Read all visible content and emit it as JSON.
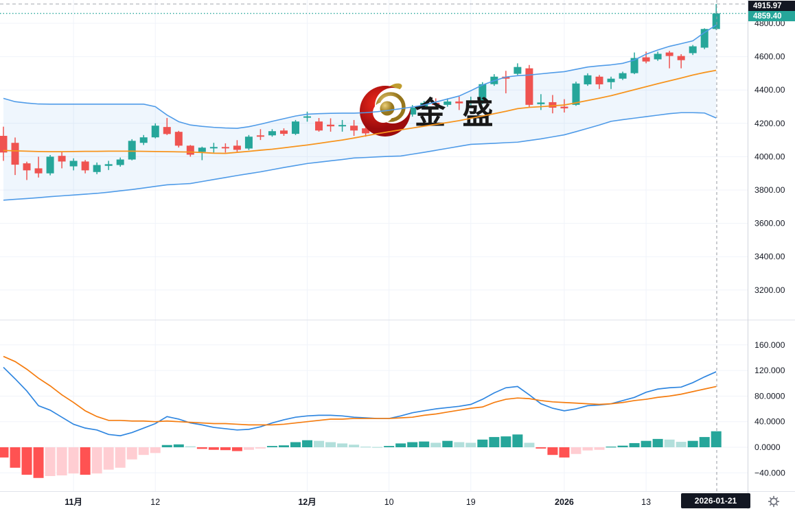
{
  "watermark": {
    "text": "金 盛"
  },
  "price_axis": {
    "high_badge": {
      "text": "4915.97",
      "value": 4915.97,
      "bg": "#131722"
    },
    "last_badge": {
      "text": "4859.40",
      "value": 4859.4,
      "bg": "#26a69a"
    },
    "labels": [
      "4800.00",
      "4600.00",
      "4400.00",
      "4200.00",
      "4000.00",
      "3800.00",
      "3600.00",
      "3400.00",
      "3200.00"
    ],
    "values": [
      4800,
      4600,
      4400,
      4200,
      4000,
      3800,
      3600,
      3400,
      3200
    ]
  },
  "indicator_axis": {
    "labels": [
      "160.000",
      "120.000",
      "80.0000",
      "40.0000",
      "0.0000",
      "−40.000"
    ],
    "values": [
      160,
      120,
      80,
      40,
      0,
      -40
    ]
  },
  "time_axis": {
    "ticks": [
      {
        "label": "11月",
        "index": 6,
        "bold": true
      },
      {
        "label": "12",
        "index": 13,
        "bold": false
      },
      {
        "label": "12月",
        "index": 26,
        "bold": true
      },
      {
        "label": "10",
        "index": 33,
        "bold": false
      },
      {
        "label": "19",
        "index": 40,
        "bold": false
      },
      {
        "label": "2026",
        "index": 48,
        "bold": true
      },
      {
        "label": "13",
        "index": 55,
        "bold": false
      }
    ],
    "current_badge": "2026-01-21"
  },
  "colors": {
    "up": "#26a69a",
    "down": "#ef5350",
    "boll_band": "#4f9be8",
    "boll_fill": "rgba(79,155,232,0.09)",
    "boll_mid": "#f7941d",
    "macd_fast": "#2f86e0",
    "macd_slow": "#f57c0f",
    "hist_up": "#26a69a",
    "hist_up_fade": "#b2dfdb",
    "hist_down": "#ff5252",
    "hist_down_fade": "#ffcdd2",
    "grid": "#f0f3fa",
    "text": "#131722",
    "separator": "#e0e3eb",
    "axis_border": "#d1d4dc",
    "high_line": "#a3a6af",
    "last_line": "#26a69a",
    "cursor_line": "#9598a1",
    "logo_red": "#c8100f",
    "logo_gold": "#bf9c2e"
  },
  "chart_data": {
    "type": "candlestick",
    "panes": [
      "price + Bollinger Bands",
      "MACD"
    ],
    "x_unit": "trading day",
    "session_high": 4915.97,
    "last_price": 4859.4,
    "current_date": "2026-01-21",
    "price_range": [
      3200,
      4915.97
    ],
    "macd_range": [
      -48,
      160
    ],
    "candles": {
      "open": [
        4125,
        4083,
        3960,
        3930,
        3900,
        4005,
        3942,
        3971,
        3908,
        3945,
        3950,
        3983,
        4083,
        4116,
        4178,
        4149,
        4066,
        4029,
        4050,
        4058,
        4066,
        4049,
        4128,
        4128,
        4157,
        4137,
        4235,
        4211,
        4192,
        4182,
        4186,
        4170,
        4145,
        4198,
        4240,
        4253,
        4294,
        4323,
        4311,
        4331,
        4320,
        4323,
        4435,
        4480,
        4497,
        4530,
        4315,
        4327,
        4300,
        4311,
        4434,
        4480,
        4447,
        4468,
        4501,
        4596,
        4584,
        4625,
        4604,
        4621,
        4654,
        4766
      ],
      "high": [
        4180,
        4115,
        3970,
        4000,
        4010,
        4032,
        3990,
        3980,
        3965,
        3975,
        3995,
        4105,
        4130,
        4200,
        4232,
        4155,
        4070,
        4060,
        4083,
        4080,
        4099,
        4130,
        4165,
        4165,
        4170,
        4220,
        4270,
        4232,
        4230,
        4220,
        4220,
        4200,
        4210,
        4260,
        4260,
        4310,
        4335,
        4350,
        4350,
        4360,
        4360,
        4447,
        4495,
        4515,
        4560,
        4550,
        4375,
        4370,
        4345,
        4450,
        4500,
        4490,
        4480,
        4510,
        4625,
        4630,
        4630,
        4635,
        4615,
        4670,
        4770,
        4915.97
      ],
      "low": [
        3975,
        3890,
        3860,
        3875,
        3888,
        3930,
        3918,
        3900,
        3895,
        3920,
        3940,
        3978,
        4070,
        4110,
        4130,
        4055,
        4000,
        3979,
        4025,
        4025,
        4030,
        4040,
        4100,
        4120,
        4125,
        4130,
        4210,
        4150,
        4150,
        4150,
        4125,
        4120,
        4135,
        4190,
        4200,
        4240,
        4285,
        4290,
        4300,
        4280,
        4300,
        4315,
        4425,
        4380,
        4490,
        4295,
        4280,
        4260,
        4265,
        4305,
        4425,
        4406,
        4406,
        4460,
        4495,
        4560,
        4575,
        4530,
        4530,
        4610,
        4645,
        4760
      ],
      "close": [
        4025,
        3952,
        3918,
        3900,
        4000,
        3971,
        3975,
        3918,
        3950,
        3955,
        3983,
        4095,
        4116,
        4186,
        4136,
        4066,
        4012,
        4054,
        4058,
        4050,
        4041,
        4120,
        4120,
        4153,
        4137,
        4211,
        4242,
        4157,
        4182,
        4190,
        4157,
        4140,
        4198,
        4240,
        4215,
        4294,
        4323,
        4310,
        4331,
        4320,
        4330,
        4435,
        4480,
        4468,
        4538,
        4311,
        4325,
        4294,
        4290,
        4439,
        4488,
        4434,
        4468,
        4501,
        4592,
        4571,
        4617,
        4604,
        4579,
        4662,
        4766,
        4859.4
      ]
    },
    "bollinger": {
      "upper": [
        4350,
        4330,
        4322,
        4316,
        4315,
        4315,
        4315,
        4315,
        4315,
        4315,
        4315,
        4315,
        4315,
        4300,
        4250,
        4210,
        4190,
        4182,
        4176,
        4172,
        4170,
        4180,
        4195,
        4212,
        4228,
        4244,
        4255,
        4258,
        4260,
        4261,
        4261,
        4264,
        4270,
        4278,
        4288,
        4298,
        4310,
        4328,
        4346,
        4364,
        4396,
        4430,
        4456,
        4478,
        4486,
        4490,
        4497,
        4504,
        4510,
        4524,
        4538,
        4545,
        4551,
        4560,
        4580,
        4615,
        4640,
        4662,
        4678,
        4695,
        4745,
        4790
      ],
      "middle": [
        4037,
        4035,
        4033,
        4031,
        4030,
        4030,
        4031,
        4032,
        4032,
        4033,
        4033,
        4033,
        4032,
        4031,
        4030,
        4029,
        4028,
        4025,
        4021,
        4020,
        4026,
        4032,
        4039,
        4045,
        4053,
        4062,
        4070,
        4080,
        4090,
        4100,
        4112,
        4125,
        4138,
        4150,
        4161,
        4172,
        4183,
        4194,
        4205,
        4216,
        4230,
        4244,
        4258,
        4272,
        4288,
        4296,
        4300,
        4305,
        4310,
        4323,
        4337,
        4351,
        4366,
        4384,
        4402,
        4420,
        4438,
        4455,
        4472,
        4490,
        4505,
        4518
      ],
      "lower": [
        3739,
        3744,
        3749,
        3754,
        3760,
        3765,
        3770,
        3775,
        3780,
        3787,
        3795,
        3803,
        3812,
        3822,
        3831,
        3835,
        3839,
        3851,
        3863,
        3875,
        3887,
        3898,
        3909,
        3922,
        3935,
        3947,
        3959,
        3967,
        3975,
        3983,
        3992,
        3995,
        3999,
        4002,
        4004,
        4015,
        4026,
        4038,
        4050,
        4062,
        4074,
        4077,
        4080,
        4084,
        4087,
        4097,
        4107,
        4119,
        4131,
        4150,
        4170,
        4190,
        4212,
        4222,
        4231,
        4240,
        4249,
        4258,
        4264,
        4264,
        4262,
        4232
      ]
    },
    "macd": {
      "histogram": [
        -16,
        -32,
        -43,
        -48,
        -45,
        -44,
        -41,
        -43,
        -41,
        -35,
        -32,
        -19,
        -12,
        -9,
        3.5,
        4.5,
        1.5,
        -2.5,
        -4,
        -4.5,
        -6,
        -4,
        -2,
        2,
        3,
        8,
        11,
        10,
        8,
        6,
        4,
        1,
        0.5,
        2,
        6,
        8,
        9,
        7,
        10,
        8,
        7,
        12,
        16,
        17,
        20,
        7,
        -2,
        -12,
        -16,
        -10.5,
        -5,
        -4,
        1,
        2.5,
        6.5,
        10,
        13,
        12,
        8.5,
        10,
        16,
        25
      ],
      "dif": [
        125,
        107,
        88,
        65,
        58,
        47,
        36,
        30,
        27,
        20,
        18,
        23,
        30,
        37,
        48,
        44,
        38,
        35,
        31,
        29,
        27,
        28,
        32,
        38,
        43,
        47,
        49,
        50,
        50,
        49,
        47,
        46,
        45,
        45,
        49,
        54,
        57,
        60,
        62,
        64,
        67,
        75,
        85,
        93,
        95,
        82,
        68,
        61,
        57,
        60,
        65,
        66,
        68,
        73,
        78,
        86,
        91,
        93,
        94,
        101,
        110,
        118
      ],
      "dea": [
        142,
        134,
        122,
        108,
        96,
        82,
        70,
        57,
        48,
        42,
        42,
        41,
        41,
        40,
        41,
        40,
        39,
        38,
        37,
        37,
        36,
        35,
        35,
        35,
        36,
        38,
        40,
        42,
        44,
        44,
        45,
        45,
        45,
        45,
        46,
        47,
        50,
        52,
        55,
        58,
        61,
        63,
        70,
        75,
        77,
        76,
        73,
        71,
        70,
        69,
        68,
        67,
        68,
        70,
        73,
        75,
        78,
        80,
        83,
        87,
        91,
        95
      ]
    }
  }
}
